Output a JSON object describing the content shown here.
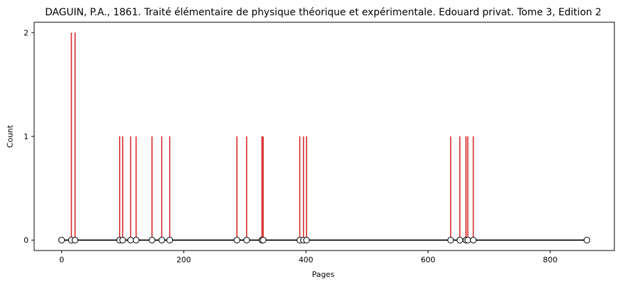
{
  "chart_data": {
    "type": "stem",
    "title": "DAGUIN, P.A., 1861. Traité élémentaire de physique théorique et expérimentale. Edouard privat. Tome 3, Edition 2",
    "xlabel": "Pages",
    "ylabel": "Count",
    "xlim": [
      -45,
      905
    ],
    "ylim": [
      -0.1,
      2.1
    ],
    "xticks": [
      0,
      200,
      400,
      600,
      800
    ],
    "yticks": [
      0,
      1,
      2
    ],
    "grid": false,
    "baseline": {
      "x_start": 0,
      "x_end": 860,
      "y": 0
    },
    "stems": [
      {
        "x": 16,
        "count": 2
      },
      {
        "x": 22,
        "count": 2
      },
      {
        "x": 95,
        "count": 1
      },
      {
        "x": 100,
        "count": 1
      },
      {
        "x": 113,
        "count": 1
      },
      {
        "x": 122,
        "count": 1
      },
      {
        "x": 148,
        "count": 1
      },
      {
        "x": 164,
        "count": 1
      },
      {
        "x": 177,
        "count": 1
      },
      {
        "x": 287,
        "count": 1
      },
      {
        "x": 303,
        "count": 1
      },
      {
        "x": 328,
        "count": 1
      },
      {
        "x": 330,
        "count": 1
      },
      {
        "x": 390,
        "count": 1
      },
      {
        "x": 396,
        "count": 1
      },
      {
        "x": 401,
        "count": 1
      },
      {
        "x": 637,
        "count": 1
      },
      {
        "x": 652,
        "count": 1
      },
      {
        "x": 662,
        "count": 1
      },
      {
        "x": 665,
        "count": 1
      },
      {
        "x": 674,
        "count": 1
      }
    ],
    "markers_x": [
      0,
      16,
      22,
      95,
      100,
      113,
      122,
      148,
      164,
      177,
      287,
      303,
      328,
      330,
      390,
      396,
      401,
      637,
      652,
      662,
      665,
      674,
      860
    ],
    "colors": {
      "stem": "#d62728",
      "baseline": "#000000",
      "marker_edge": "#000000",
      "marker_fill": "#ffffff"
    }
  }
}
